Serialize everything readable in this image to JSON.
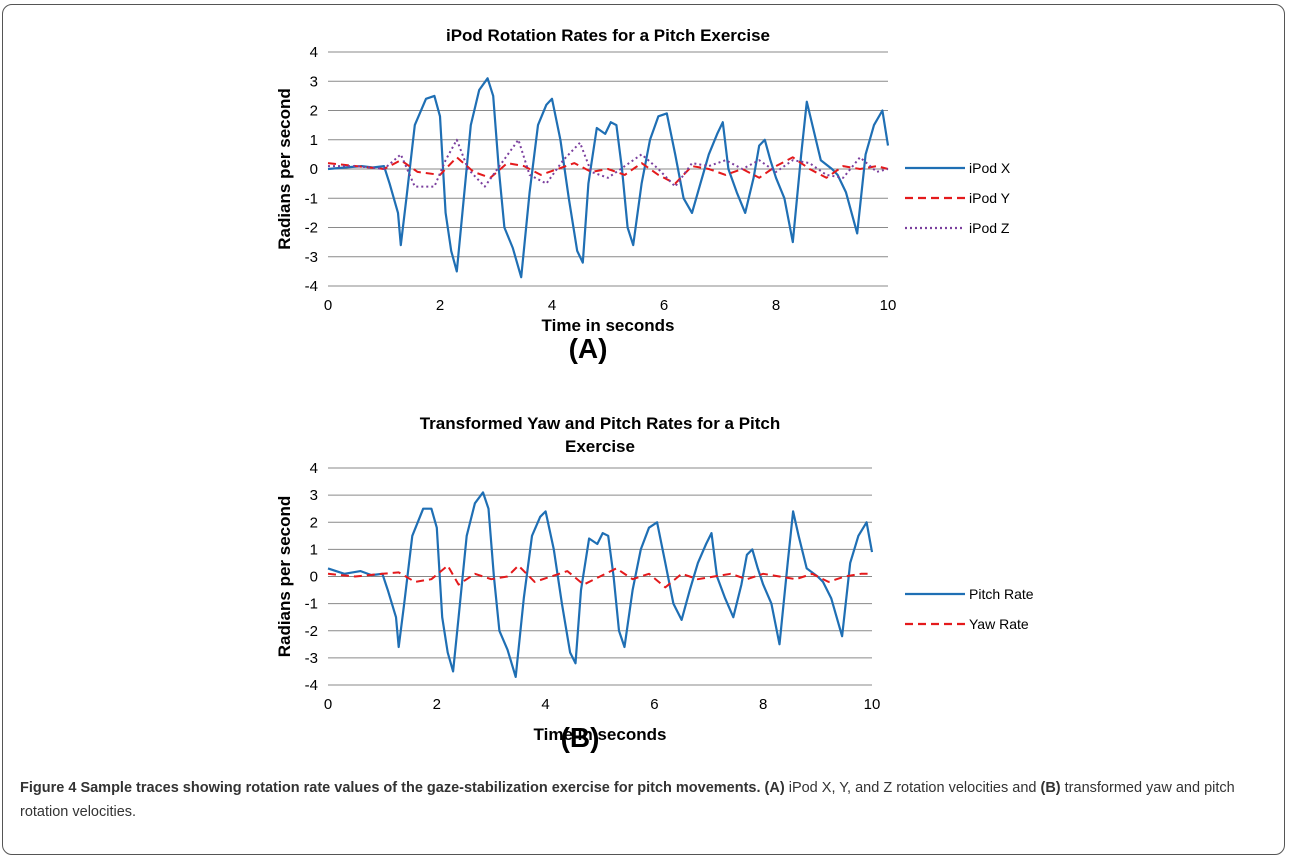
{
  "chart_data": [
    {
      "type": "line",
      "title": "iPod Rotation Rates for a Pitch Exercise",
      "panel_label": "(A)",
      "xlabel": "Time in seconds",
      "ylabel": "Radians per second",
      "xlim": [
        0,
        10
      ],
      "ylim": [
        -4,
        4
      ],
      "xticks": [
        "0",
        "2",
        "4",
        "6",
        "8",
        "10"
      ],
      "yticks": [
        "4",
        "3",
        "2",
        "1",
        "0",
        "-1",
        "-2",
        "-3",
        "-4"
      ],
      "grid": "horizontal",
      "legend_position": "right",
      "series": [
        {
          "name": "iPod X",
          "color": "#1f6fb4",
          "style": "solid",
          "x": [
            0,
            0.3,
            0.6,
            0.8,
            1.0,
            1.1,
            1.25,
            1.3,
            1.4,
            1.55,
            1.75,
            1.9,
            2.0,
            2.1,
            2.2,
            2.3,
            2.4,
            2.55,
            2.7,
            2.85,
            2.95,
            3.05,
            3.15,
            3.3,
            3.45,
            3.6,
            3.75,
            3.9,
            4.0,
            4.15,
            4.3,
            4.45,
            4.55,
            4.65,
            4.8,
            4.95,
            5.05,
            5.15,
            5.25,
            5.35,
            5.45,
            5.6,
            5.75,
            5.9,
            6.05,
            6.2,
            6.35,
            6.5,
            6.65,
            6.8,
            6.95,
            7.05,
            7.15,
            7.3,
            7.45,
            7.6,
            7.7,
            7.8,
            7.9,
            8.0,
            8.15,
            8.3,
            8.45,
            8.55,
            8.65,
            8.8,
            9.0,
            9.1,
            9.25,
            9.45,
            9.6,
            9.75,
            9.9,
            10.0
          ],
          "y": [
            0.0,
            0.05,
            0.1,
            0.05,
            0.1,
            -0.5,
            -1.5,
            -2.6,
            -1.0,
            1.5,
            2.4,
            2.5,
            1.8,
            -1.5,
            -2.8,
            -3.5,
            -1.5,
            1.5,
            2.7,
            3.1,
            2.5,
            0.0,
            -2.0,
            -2.7,
            -3.7,
            -0.8,
            1.5,
            2.2,
            2.4,
            1.0,
            -1.0,
            -2.8,
            -3.2,
            -0.5,
            1.4,
            1.2,
            1.6,
            1.5,
            0.0,
            -2.0,
            -2.6,
            -0.5,
            1.0,
            1.8,
            1.9,
            0.5,
            -1.0,
            -1.5,
            -0.5,
            0.5,
            1.2,
            1.6,
            0.0,
            -0.8,
            -1.5,
            -0.3,
            0.8,
            1.0,
            0.3,
            -0.3,
            -1.0,
            -2.5,
            0.5,
            2.3,
            1.5,
            0.3,
            0.0,
            -0.2,
            -0.8,
            -2.2,
            0.5,
            1.5,
            2.0,
            0.8
          ]
        },
        {
          "name": "iPod Y",
          "color": "#e41a1c",
          "style": "dashed",
          "x": [
            0,
            0.5,
            1.0,
            1.3,
            1.6,
            2.0,
            2.3,
            2.6,
            2.9,
            3.2,
            3.5,
            3.8,
            4.1,
            4.4,
            4.7,
            5.0,
            5.3,
            5.6,
            5.9,
            6.2,
            6.5,
            6.8,
            7.1,
            7.4,
            7.7,
            8.0,
            8.3,
            8.6,
            8.9,
            9.2,
            9.5,
            9.8,
            10.0
          ],
          "y": [
            0.2,
            0.1,
            0.0,
            0.3,
            -0.1,
            -0.2,
            0.4,
            -0.1,
            -0.3,
            0.2,
            0.1,
            -0.2,
            0.0,
            0.2,
            -0.1,
            0.0,
            -0.2,
            0.2,
            -0.2,
            -0.5,
            0.1,
            0.0,
            -0.2,
            0.0,
            -0.3,
            0.1,
            0.4,
            0.0,
            -0.3,
            0.1,
            0.0,
            0.1,
            0.0
          ]
        },
        {
          "name": "iPod Z",
          "color": "#7b3f9e",
          "style": "dotted",
          "x": [
            0,
            0.5,
            1.0,
            1.3,
            1.55,
            1.9,
            2.1,
            2.3,
            2.5,
            2.8,
            3.1,
            3.4,
            3.6,
            3.9,
            4.2,
            4.5,
            4.7,
            5.0,
            5.3,
            5.6,
            5.9,
            6.2,
            6.5,
            6.8,
            7.1,
            7.4,
            7.7,
            8.0,
            8.3,
            8.6,
            8.9,
            9.2,
            9.5,
            9.8,
            10.0
          ],
          "y": [
            0.1,
            0.1,
            0.0,
            0.5,
            -0.6,
            -0.6,
            0.3,
            1.0,
            0.0,
            -0.6,
            0.2,
            1.0,
            -0.2,
            -0.5,
            0.3,
            0.9,
            -0.1,
            -0.3,
            0.1,
            0.5,
            0.0,
            -0.6,
            0.2,
            0.1,
            0.3,
            0.0,
            0.3,
            -0.1,
            0.3,
            0.2,
            -0.2,
            -0.3,
            0.4,
            -0.1,
            0.0
          ]
        }
      ]
    },
    {
      "type": "line",
      "title": "Transformed Yaw and Pitch Rates for a Pitch Exercise",
      "title_lines": [
        "Transformed Yaw and Pitch Rates for a Pitch",
        "Exercise"
      ],
      "panel_label": "(B)",
      "xlabel": "Time in seconds",
      "ylabel": "Radians per second",
      "xlim": [
        0,
        10
      ],
      "ylim": [
        -4,
        4
      ],
      "xticks": [
        "0",
        "2",
        "4",
        "6",
        "8",
        "10"
      ],
      "yticks": [
        "4",
        "3",
        "2",
        "1",
        "0",
        "-1",
        "-2",
        "-3",
        "-4"
      ],
      "grid": "horizontal",
      "legend_position": "right",
      "series": [
        {
          "name": "Pitch Rate",
          "color": "#1f6fb4",
          "style": "solid",
          "x": [
            0,
            0.3,
            0.6,
            0.8,
            1.0,
            1.1,
            1.25,
            1.3,
            1.4,
            1.55,
            1.75,
            1.9,
            2.0,
            2.1,
            2.2,
            2.3,
            2.4,
            2.55,
            2.7,
            2.85,
            2.95,
            3.05,
            3.15,
            3.3,
            3.45,
            3.6,
            3.75,
            3.9,
            4.0,
            4.15,
            4.3,
            4.45,
            4.55,
            4.65,
            4.8,
            4.95,
            5.05,
            5.15,
            5.25,
            5.35,
            5.45,
            5.6,
            5.75,
            5.9,
            6.05,
            6.2,
            6.35,
            6.5,
            6.65,
            6.8,
            6.95,
            7.05,
            7.15,
            7.3,
            7.45,
            7.6,
            7.7,
            7.8,
            7.9,
            8.0,
            8.15,
            8.3,
            8.45,
            8.55,
            8.65,
            8.8,
            9.0,
            9.1,
            9.25,
            9.45,
            9.6,
            9.75,
            9.9,
            10.0
          ],
          "y": [
            0.3,
            0.1,
            0.2,
            0.05,
            0.1,
            -0.5,
            -1.5,
            -2.6,
            -1.0,
            1.5,
            2.5,
            2.5,
            1.8,
            -1.5,
            -2.8,
            -3.5,
            -1.5,
            1.5,
            2.7,
            3.1,
            2.5,
            0.0,
            -2.0,
            -2.7,
            -3.7,
            -0.8,
            1.5,
            2.2,
            2.4,
            1.0,
            -1.0,
            -2.8,
            -3.2,
            -0.5,
            1.4,
            1.2,
            1.6,
            1.5,
            0.0,
            -2.0,
            -2.6,
            -0.5,
            1.0,
            1.8,
            2.0,
            0.5,
            -1.0,
            -1.6,
            -0.5,
            0.5,
            1.2,
            1.6,
            0.0,
            -0.8,
            -1.5,
            -0.3,
            0.8,
            1.0,
            0.3,
            -0.3,
            -1.0,
            -2.5,
            0.5,
            2.4,
            1.5,
            0.3,
            0.0,
            -0.2,
            -0.8,
            -2.2,
            0.5,
            1.5,
            2.0,
            0.9
          ]
        },
        {
          "name": "Yaw Rate",
          "color": "#e41a1c",
          "style": "dashed",
          "x": [
            0,
            0.5,
            1.0,
            1.3,
            1.6,
            1.9,
            2.2,
            2.4,
            2.7,
            3.0,
            3.3,
            3.5,
            3.8,
            4.1,
            4.4,
            4.7,
            5.0,
            5.3,
            5.6,
            5.9,
            6.2,
            6.5,
            6.8,
            7.1,
            7.4,
            7.7,
            8.0,
            8.3,
            8.6,
            8.9,
            9.2,
            9.5,
            9.8,
            10.0
          ],
          "y": [
            0.1,
            0.0,
            0.1,
            0.15,
            -0.2,
            -0.1,
            0.4,
            -0.3,
            0.1,
            -0.1,
            0.0,
            0.4,
            -0.2,
            0.0,
            0.2,
            -0.3,
            0.0,
            0.3,
            -0.1,
            0.1,
            -0.4,
            0.1,
            -0.1,
            0.0,
            0.1,
            -0.1,
            0.1,
            0.0,
            -0.1,
            0.1,
            -0.2,
            0.0,
            0.1,
            0.1
          ]
        }
      ]
    }
  ],
  "caption": {
    "figure_label": "Figure 4",
    "title": "Sample traces showing rotation rate values of the gaze-stabilization exercise for pitch movements.",
    "label_a": "(A)",
    "text_a": "iPod X, Y, and Z rotation velocities and",
    "label_b": "(B)",
    "text_b": "transformed yaw and pitch rotation velocities."
  }
}
